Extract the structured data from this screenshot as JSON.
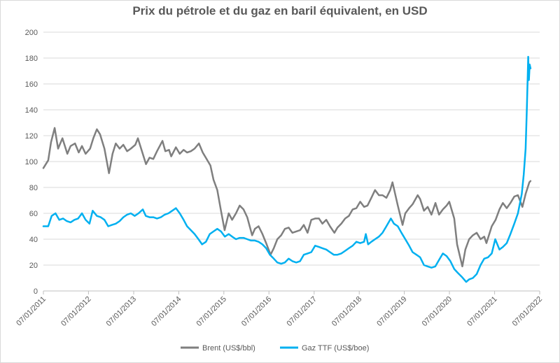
{
  "chart_data": {
    "type": "line",
    "title": "Prix du pétrole et du gaz en baril équivalent, en USD",
    "xlabel": "",
    "ylabel": "",
    "ylim": [
      0,
      200
    ],
    "yticks": [
      0,
      20,
      40,
      60,
      80,
      100,
      120,
      140,
      160,
      180,
      200
    ],
    "xlim": [
      "2011-01-07",
      "2022-01-07"
    ],
    "xticks": [
      "07/01/2011",
      "07/01/2012",
      "07/01/2013",
      "07/01/2014",
      "07/01/2015",
      "07/01/2016",
      "07/01/2017",
      "07/01/2018",
      "07/01/2019",
      "07/01/2020",
      "07/01/2021",
      "07/01/2022"
    ],
    "grid": "horizontal",
    "legend_position": "bottom",
    "series": [
      {
        "name": "Brent (US$/bbl)",
        "color": "#7f7f7f",
        "points": [
          [
            "2011-01-07",
            95
          ],
          [
            "2011-02-15",
            101
          ],
          [
            "2011-03-10",
            115
          ],
          [
            "2011-04-08",
            126
          ],
          [
            "2011-05-06",
            110
          ],
          [
            "2011-06-10",
            118
          ],
          [
            "2011-07-20",
            106
          ],
          [
            "2011-08-15",
            112
          ],
          [
            "2011-09-20",
            114
          ],
          [
            "2011-10-20",
            107
          ],
          [
            "2011-11-15",
            112
          ],
          [
            "2011-12-15",
            106
          ],
          [
            "2012-01-20",
            110
          ],
          [
            "2012-02-15",
            118
          ],
          [
            "2012-03-15",
            125
          ],
          [
            "2012-04-10",
            121
          ],
          [
            "2012-05-15",
            110
          ],
          [
            "2012-06-21",
            91
          ],
          [
            "2012-07-20",
            106
          ],
          [
            "2012-08-15",
            114
          ],
          [
            "2012-09-15",
            110
          ],
          [
            "2012-10-15",
            113
          ],
          [
            "2012-11-15",
            108
          ],
          [
            "2012-12-15",
            110
          ],
          [
            "2013-01-20",
            113
          ],
          [
            "2013-02-10",
            118
          ],
          [
            "2013-03-15",
            108
          ],
          [
            "2013-04-17",
            98
          ],
          [
            "2013-05-15",
            103
          ],
          [
            "2013-06-15",
            102
          ],
          [
            "2013-07-15",
            108
          ],
          [
            "2013-08-28",
            116
          ],
          [
            "2013-09-20",
            108
          ],
          [
            "2013-10-20",
            109
          ],
          [
            "2013-11-07",
            104
          ],
          [
            "2013-12-15",
            111
          ],
          [
            "2014-01-15",
            106
          ],
          [
            "2014-02-15",
            109
          ],
          [
            "2014-03-15",
            107
          ],
          [
            "2014-04-15",
            108
          ],
          [
            "2014-05-15",
            110
          ],
          [
            "2014-06-19",
            114
          ],
          [
            "2014-07-20",
            107
          ],
          [
            "2014-08-20",
            102
          ],
          [
            "2014-09-20",
            97
          ],
          [
            "2014-10-15",
            86
          ],
          [
            "2014-11-15",
            78
          ],
          [
            "2014-12-15",
            62
          ],
          [
            "2015-01-13",
            47
          ],
          [
            "2015-02-15",
            60
          ],
          [
            "2015-03-15",
            55
          ],
          [
            "2015-04-15",
            60
          ],
          [
            "2015-05-15",
            66
          ],
          [
            "2015-06-15",
            63
          ],
          [
            "2015-07-15",
            57
          ],
          [
            "2015-08-24",
            43
          ],
          [
            "2015-09-15",
            48
          ],
          [
            "2015-10-15",
            50
          ],
          [
            "2015-11-15",
            44
          ],
          [
            "2015-12-15",
            37
          ],
          [
            "2016-01-20",
            28
          ],
          [
            "2016-02-15",
            33
          ],
          [
            "2016-03-15",
            40
          ],
          [
            "2016-04-15",
            43
          ],
          [
            "2016-05-15",
            48
          ],
          [
            "2016-06-15",
            49
          ],
          [
            "2016-07-15",
            45
          ],
          [
            "2016-08-15",
            46
          ],
          [
            "2016-09-15",
            47
          ],
          [
            "2016-10-15",
            51
          ],
          [
            "2016-11-15",
            45
          ],
          [
            "2016-12-15",
            55
          ],
          [
            "2017-01-15",
            56
          ],
          [
            "2017-02-15",
            56
          ],
          [
            "2017-03-15",
            52
          ],
          [
            "2017-04-15",
            55
          ],
          [
            "2017-05-15",
            50
          ],
          [
            "2017-06-20",
            45
          ],
          [
            "2017-07-15",
            49
          ],
          [
            "2017-08-15",
            52
          ],
          [
            "2017-09-15",
            56
          ],
          [
            "2017-10-15",
            58
          ],
          [
            "2017-11-15",
            63
          ],
          [
            "2017-12-15",
            64
          ],
          [
            "2018-01-15",
            69
          ],
          [
            "2018-02-15",
            65
          ],
          [
            "2018-03-15",
            66
          ],
          [
            "2018-04-15",
            72
          ],
          [
            "2018-05-15",
            78
          ],
          [
            "2018-06-15",
            74
          ],
          [
            "2018-07-15",
            74
          ],
          [
            "2018-08-15",
            72
          ],
          [
            "2018-09-15",
            78
          ],
          [
            "2018-10-03",
            84
          ],
          [
            "2018-11-15",
            66
          ],
          [
            "2018-12-24",
            51
          ],
          [
            "2019-01-15",
            60
          ],
          [
            "2019-02-15",
            64
          ],
          [
            "2019-03-15",
            67
          ],
          [
            "2019-04-25",
            74
          ],
          [
            "2019-05-15",
            71
          ],
          [
            "2019-06-15",
            62
          ],
          [
            "2019-07-15",
            65
          ],
          [
            "2019-08-15",
            59
          ],
          [
            "2019-09-16",
            68
          ],
          [
            "2019-10-15",
            59
          ],
          [
            "2019-11-15",
            63
          ],
          [
            "2019-12-15",
            66
          ],
          [
            "2020-01-06",
            69
          ],
          [
            "2020-02-15",
            56
          ],
          [
            "2020-03-09",
            36
          ],
          [
            "2020-04-21",
            19
          ],
          [
            "2020-05-15",
            32
          ],
          [
            "2020-06-15",
            40
          ],
          [
            "2020-07-15",
            43
          ],
          [
            "2020-08-15",
            45
          ],
          [
            "2020-09-15",
            40
          ],
          [
            "2020-10-15",
            42
          ],
          [
            "2020-11-02",
            37
          ],
          [
            "2020-12-15",
            50
          ],
          [
            "2021-01-15",
            55
          ],
          [
            "2021-02-15",
            63
          ],
          [
            "2021-03-15",
            68
          ],
          [
            "2021-04-15",
            64
          ],
          [
            "2021-05-15",
            68
          ],
          [
            "2021-06-15",
            73
          ],
          [
            "2021-07-15",
            74
          ],
          [
            "2021-08-20",
            65
          ],
          [
            "2021-09-15",
            75
          ],
          [
            "2021-10-15",
            84
          ],
          [
            "2021-10-25",
            85
          ]
        ]
      },
      {
        "name": "Gaz TTF (US$/boe)",
        "color": "#00b0f0",
        "points": [
          [
            "2011-01-07",
            50
          ],
          [
            "2011-02-15",
            50
          ],
          [
            "2011-03-15",
            58
          ],
          [
            "2011-04-15",
            60
          ],
          [
            "2011-05-15",
            55
          ],
          [
            "2011-06-15",
            56
          ],
          [
            "2011-07-15",
            54
          ],
          [
            "2011-08-15",
            53
          ],
          [
            "2011-09-15",
            55
          ],
          [
            "2011-10-15",
            56
          ],
          [
            "2011-11-15",
            60
          ],
          [
            "2011-12-15",
            55
          ],
          [
            "2012-01-15",
            52
          ],
          [
            "2012-02-10",
            62
          ],
          [
            "2012-03-15",
            58
          ],
          [
            "2012-04-15",
            57
          ],
          [
            "2012-05-15",
            55
          ],
          [
            "2012-06-15",
            50
          ],
          [
            "2012-07-15",
            51
          ],
          [
            "2012-08-15",
            52
          ],
          [
            "2012-09-15",
            54
          ],
          [
            "2012-10-15",
            57
          ],
          [
            "2012-11-15",
            59
          ],
          [
            "2012-12-15",
            60
          ],
          [
            "2013-01-15",
            58
          ],
          [
            "2013-02-15",
            60
          ],
          [
            "2013-03-22",
            63
          ],
          [
            "2013-04-15",
            58
          ],
          [
            "2013-05-15",
            57
          ],
          [
            "2013-06-15",
            57
          ],
          [
            "2013-07-15",
            56
          ],
          [
            "2013-08-15",
            57
          ],
          [
            "2013-09-15",
            59
          ],
          [
            "2013-10-15",
            60
          ],
          [
            "2013-11-15",
            62
          ],
          [
            "2013-12-15",
            64
          ],
          [
            "2014-01-15",
            60
          ],
          [
            "2014-02-15",
            55
          ],
          [
            "2014-03-15",
            50
          ],
          [
            "2014-04-15",
            47
          ],
          [
            "2014-05-15",
            44
          ],
          [
            "2014-06-15",
            40
          ],
          [
            "2014-07-15",
            36
          ],
          [
            "2014-08-15",
            38
          ],
          [
            "2014-09-15",
            44
          ],
          [
            "2014-10-15",
            46
          ],
          [
            "2014-11-15",
            48
          ],
          [
            "2014-12-15",
            46
          ],
          [
            "2015-01-15",
            42
          ],
          [
            "2015-02-15",
            44
          ],
          [
            "2015-03-15",
            42
          ],
          [
            "2015-04-15",
            40
          ],
          [
            "2015-05-15",
            41
          ],
          [
            "2015-06-15",
            41
          ],
          [
            "2015-07-15",
            40
          ],
          [
            "2015-08-15",
            39
          ],
          [
            "2015-09-15",
            39
          ],
          [
            "2015-10-15",
            38
          ],
          [
            "2015-11-15",
            36
          ],
          [
            "2015-12-15",
            33
          ],
          [
            "2016-01-15",
            28
          ],
          [
            "2016-02-15",
            25
          ],
          [
            "2016-03-15",
            22
          ],
          [
            "2016-04-15",
            21
          ],
          [
            "2016-05-15",
            22
          ],
          [
            "2016-06-15",
            25
          ],
          [
            "2016-07-15",
            23
          ],
          [
            "2016-08-15",
            22
          ],
          [
            "2016-09-15",
            23
          ],
          [
            "2016-10-15",
            28
          ],
          [
            "2016-11-15",
            29
          ],
          [
            "2016-12-15",
            30
          ],
          [
            "2017-01-15",
            35
          ],
          [
            "2017-02-15",
            34
          ],
          [
            "2017-03-15",
            33
          ],
          [
            "2017-04-15",
            32
          ],
          [
            "2017-05-15",
            30
          ],
          [
            "2017-06-15",
            28
          ],
          [
            "2017-07-15",
            28
          ],
          [
            "2017-08-15",
            29
          ],
          [
            "2017-09-15",
            31
          ],
          [
            "2017-10-15",
            33
          ],
          [
            "2017-11-15",
            35
          ],
          [
            "2017-12-15",
            38
          ],
          [
            "2018-01-15",
            37
          ],
          [
            "2018-02-15",
            38
          ],
          [
            "2018-03-01",
            44
          ],
          [
            "2018-03-20",
            36
          ],
          [
            "2018-04-15",
            38
          ],
          [
            "2018-05-15",
            40
          ],
          [
            "2018-06-15",
            42
          ],
          [
            "2018-07-15",
            45
          ],
          [
            "2018-08-15",
            50
          ],
          [
            "2018-09-20",
            56
          ],
          [
            "2018-10-15",
            52
          ],
          [
            "2018-11-15",
            50
          ],
          [
            "2018-12-15",
            45
          ],
          [
            "2019-01-15",
            40
          ],
          [
            "2019-02-15",
            35
          ],
          [
            "2019-03-15",
            30
          ],
          [
            "2019-04-15",
            28
          ],
          [
            "2019-05-15",
            26
          ],
          [
            "2019-06-15",
            20
          ],
          [
            "2019-07-15",
            19
          ],
          [
            "2019-08-15",
            18
          ],
          [
            "2019-09-15",
            19
          ],
          [
            "2019-10-15",
            24
          ],
          [
            "2019-11-15",
            29
          ],
          [
            "2019-12-15",
            27
          ],
          [
            "2020-01-15",
            23
          ],
          [
            "2020-02-15",
            17
          ],
          [
            "2020-03-15",
            14
          ],
          [
            "2020-04-15",
            11
          ],
          [
            "2020-05-22",
            7
          ],
          [
            "2020-06-15",
            9
          ],
          [
            "2020-07-15",
            10
          ],
          [
            "2020-08-15",
            13
          ],
          [
            "2020-09-15",
            20
          ],
          [
            "2020-10-15",
            25
          ],
          [
            "2020-11-15",
            26
          ],
          [
            "2020-12-15",
            29
          ],
          [
            "2021-01-12",
            40
          ],
          [
            "2021-02-15",
            32
          ],
          [
            "2021-03-15",
            34
          ],
          [
            "2021-04-15",
            37
          ],
          [
            "2021-05-15",
            44
          ],
          [
            "2021-06-15",
            52
          ],
          [
            "2021-07-15",
            60
          ],
          [
            "2021-08-15",
            75
          ],
          [
            "2021-08-31",
            90
          ],
          [
            "2021-09-15",
            110
          ],
          [
            "2021-09-25",
            140
          ],
          [
            "2021-10-02",
            166
          ],
          [
            "2021-10-06",
            181
          ],
          [
            "2021-10-12",
            163
          ],
          [
            "2021-10-18",
            175
          ],
          [
            "2021-10-25",
            172
          ]
        ]
      }
    ]
  }
}
